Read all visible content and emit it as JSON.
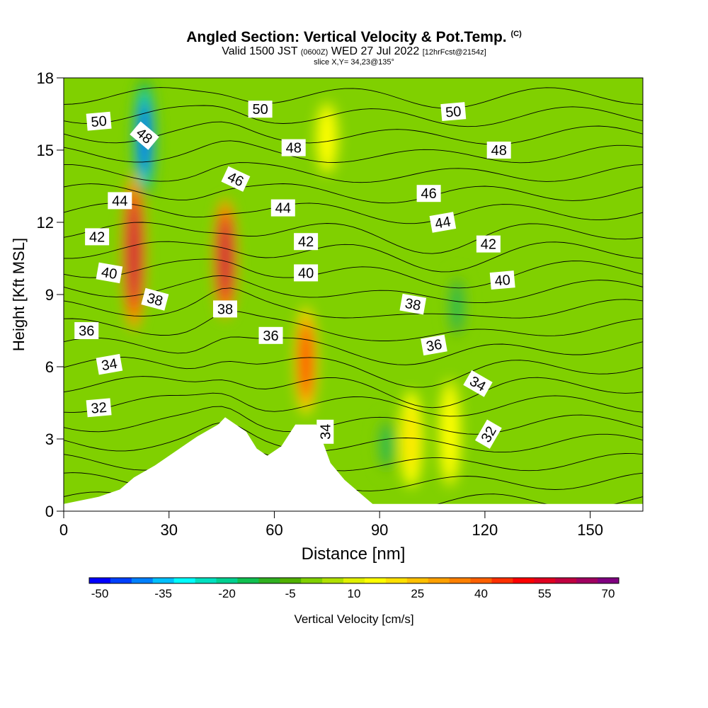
{
  "title": {
    "main": "Angled Section: Vertical Velocity & Pot.Temp.",
    "copyright": "(C)",
    "valid_prefix": "Valid 1500 JST",
    "utc": "(0600Z)",
    "valid_date": "WED 27 Jul 2022",
    "forecast": "[12hrFcst@2154z]",
    "slice": "slice X,Y= 34,23@135°"
  },
  "chart_data": {
    "type": "heatmap",
    "xlabel": "Distance [nm]",
    "ylabel": "Height [Kft MSL]",
    "xlim": [
      0,
      165
    ],
    "ylim": [
      0,
      18
    ],
    "x_ticks": [
      0,
      30,
      60,
      90,
      120,
      150
    ],
    "y_ticks": [
      0,
      3,
      6,
      9,
      12,
      15,
      18
    ],
    "colorbar": {
      "label": "Vertical Velocity [cm/s]",
      "tick_labels": [
        "-50",
        "-35",
        "-20",
        "-5",
        "10",
        "25",
        "40",
        "55",
        "70"
      ],
      "levels_start": -50,
      "levels_step": 5,
      "colors": [
        "#0000ff",
        "#0040ff",
        "#0080ff",
        "#00c0ff",
        "#00ffff",
        "#00e0c0",
        "#00d090",
        "#10c050",
        "#30b020",
        "#50b000",
        "#80d000",
        "#b0e000",
        "#e0f000",
        "#ffff00",
        "#ffe000",
        "#ffc000",
        "#ffa000",
        "#ff8000",
        "#ff6000",
        "#ff3000",
        "#ff0000",
        "#e00020",
        "#c00040",
        "#a00060",
        "#800080"
      ]
    },
    "vertical_velocity_features": [
      {
        "x": 20,
        "y_bottom": 7.5,
        "y_top": 14,
        "peak_cm_s": 60
      },
      {
        "x": 23,
        "y_bottom": 13,
        "y_top": 18,
        "peak_cm_s": -45
      },
      {
        "x": 46,
        "y_bottom": 8,
        "y_top": 13,
        "peak_cm_s": 60
      },
      {
        "x": 69,
        "y_bottom": 4,
        "y_top": 8.5,
        "peak_cm_s": 45
      },
      {
        "x": 75,
        "y_bottom": 14,
        "y_top": 17,
        "peak_cm_s": 15
      },
      {
        "x": 99,
        "y_bottom": 1,
        "y_top": 5,
        "peak_cm_s": 20
      },
      {
        "x": 110,
        "y_bottom": 1,
        "y_top": 5.5,
        "peak_cm_s": 15
      },
      {
        "x": 92,
        "y_bottom": 1.5,
        "y_top": 4,
        "peak_cm_s": -15
      },
      {
        "x": 112,
        "y_bottom": 7,
        "y_top": 10,
        "peak_cm_s": -15
      }
    ],
    "terrain": [
      {
        "x": 0,
        "height": 0.3
      },
      {
        "x": 10,
        "height": 0.6
      },
      {
        "x": 16,
        "height": 0.9
      },
      {
        "x": 20,
        "height": 1.4
      },
      {
        "x": 26,
        "height": 1.9
      },
      {
        "x": 32,
        "height": 2.5
      },
      {
        "x": 38,
        "height": 3.1
      },
      {
        "x": 44,
        "height": 3.6
      },
      {
        "x": 46,
        "height": 3.9
      },
      {
        "x": 52,
        "height": 3.3
      },
      {
        "x": 55,
        "height": 2.6
      },
      {
        "x": 58,
        "height": 2.3
      },
      {
        "x": 62,
        "height": 2.7
      },
      {
        "x": 66,
        "height": 3.6
      },
      {
        "x": 72,
        "height": 3.6
      },
      {
        "x": 76,
        "height": 2.0
      },
      {
        "x": 80,
        "height": 1.3
      },
      {
        "x": 84,
        "height": 0.8
      },
      {
        "x": 88,
        "height": 0.3
      },
      {
        "x": 165,
        "height": 0.3
      }
    ],
    "potential_temperature_labels": [
      {
        "text": "50",
        "x": 10,
        "y": 16.2,
        "rot": -5
      },
      {
        "text": "48",
        "x": 23,
        "y": 15.6,
        "rot": 40
      },
      {
        "text": "44",
        "x": 16,
        "y": 12.9,
        "rot": 0
      },
      {
        "text": "42",
        "x": 9.5,
        "y": 11.4,
        "rot": 0
      },
      {
        "text": "40",
        "x": 13,
        "y": 9.9,
        "rot": 10
      },
      {
        "text": "38",
        "x": 26,
        "y": 8.8,
        "rot": 15
      },
      {
        "text": "36",
        "x": 6.5,
        "y": 7.5,
        "rot": 0
      },
      {
        "text": "34",
        "x": 13,
        "y": 6.1,
        "rot": -10
      },
      {
        "text": "32",
        "x": 10,
        "y": 4.3,
        "rot": -5
      },
      {
        "text": "50",
        "x": 56,
        "y": 16.7,
        "rot": 0
      },
      {
        "text": "48",
        "x": 65.5,
        "y": 15.1,
        "rot": 0
      },
      {
        "text": "46",
        "x": 49,
        "y": 13.8,
        "rot": 25
      },
      {
        "text": "44",
        "x": 62.5,
        "y": 12.6,
        "rot": 0
      },
      {
        "text": "42",
        "x": 69,
        "y": 11.2,
        "rot": 0
      },
      {
        "text": "40",
        "x": 69,
        "y": 9.9,
        "rot": 0
      },
      {
        "text": "38",
        "x": 46,
        "y": 8.4,
        "rot": 0
      },
      {
        "text": "36",
        "x": 59,
        "y": 7.3,
        "rot": 0
      },
      {
        "text": "34",
        "x": 74.5,
        "y": 3.3,
        "rot": -90
      },
      {
        "text": "50",
        "x": 111,
        "y": 16.6,
        "rot": -5
      },
      {
        "text": "48",
        "x": 124,
        "y": 15.0,
        "rot": 0
      },
      {
        "text": "46",
        "x": 104,
        "y": 13.2,
        "rot": 0
      },
      {
        "text": "44",
        "x": 108,
        "y": 12.0,
        "rot": -10
      },
      {
        "text": "42",
        "x": 121,
        "y": 11.1,
        "rot": 0
      },
      {
        "text": "40",
        "x": 125,
        "y": 9.6,
        "rot": -5
      },
      {
        "text": "38",
        "x": 99.5,
        "y": 8.6,
        "rot": 10
      },
      {
        "text": "36",
        "x": 105.5,
        "y": 6.9,
        "rot": -10
      },
      {
        "text": "34",
        "x": 118,
        "y": 5.3,
        "rot": 30
      },
      {
        "text": "32",
        "x": 121,
        "y": 3.2,
        "rot": -60
      }
    ]
  }
}
